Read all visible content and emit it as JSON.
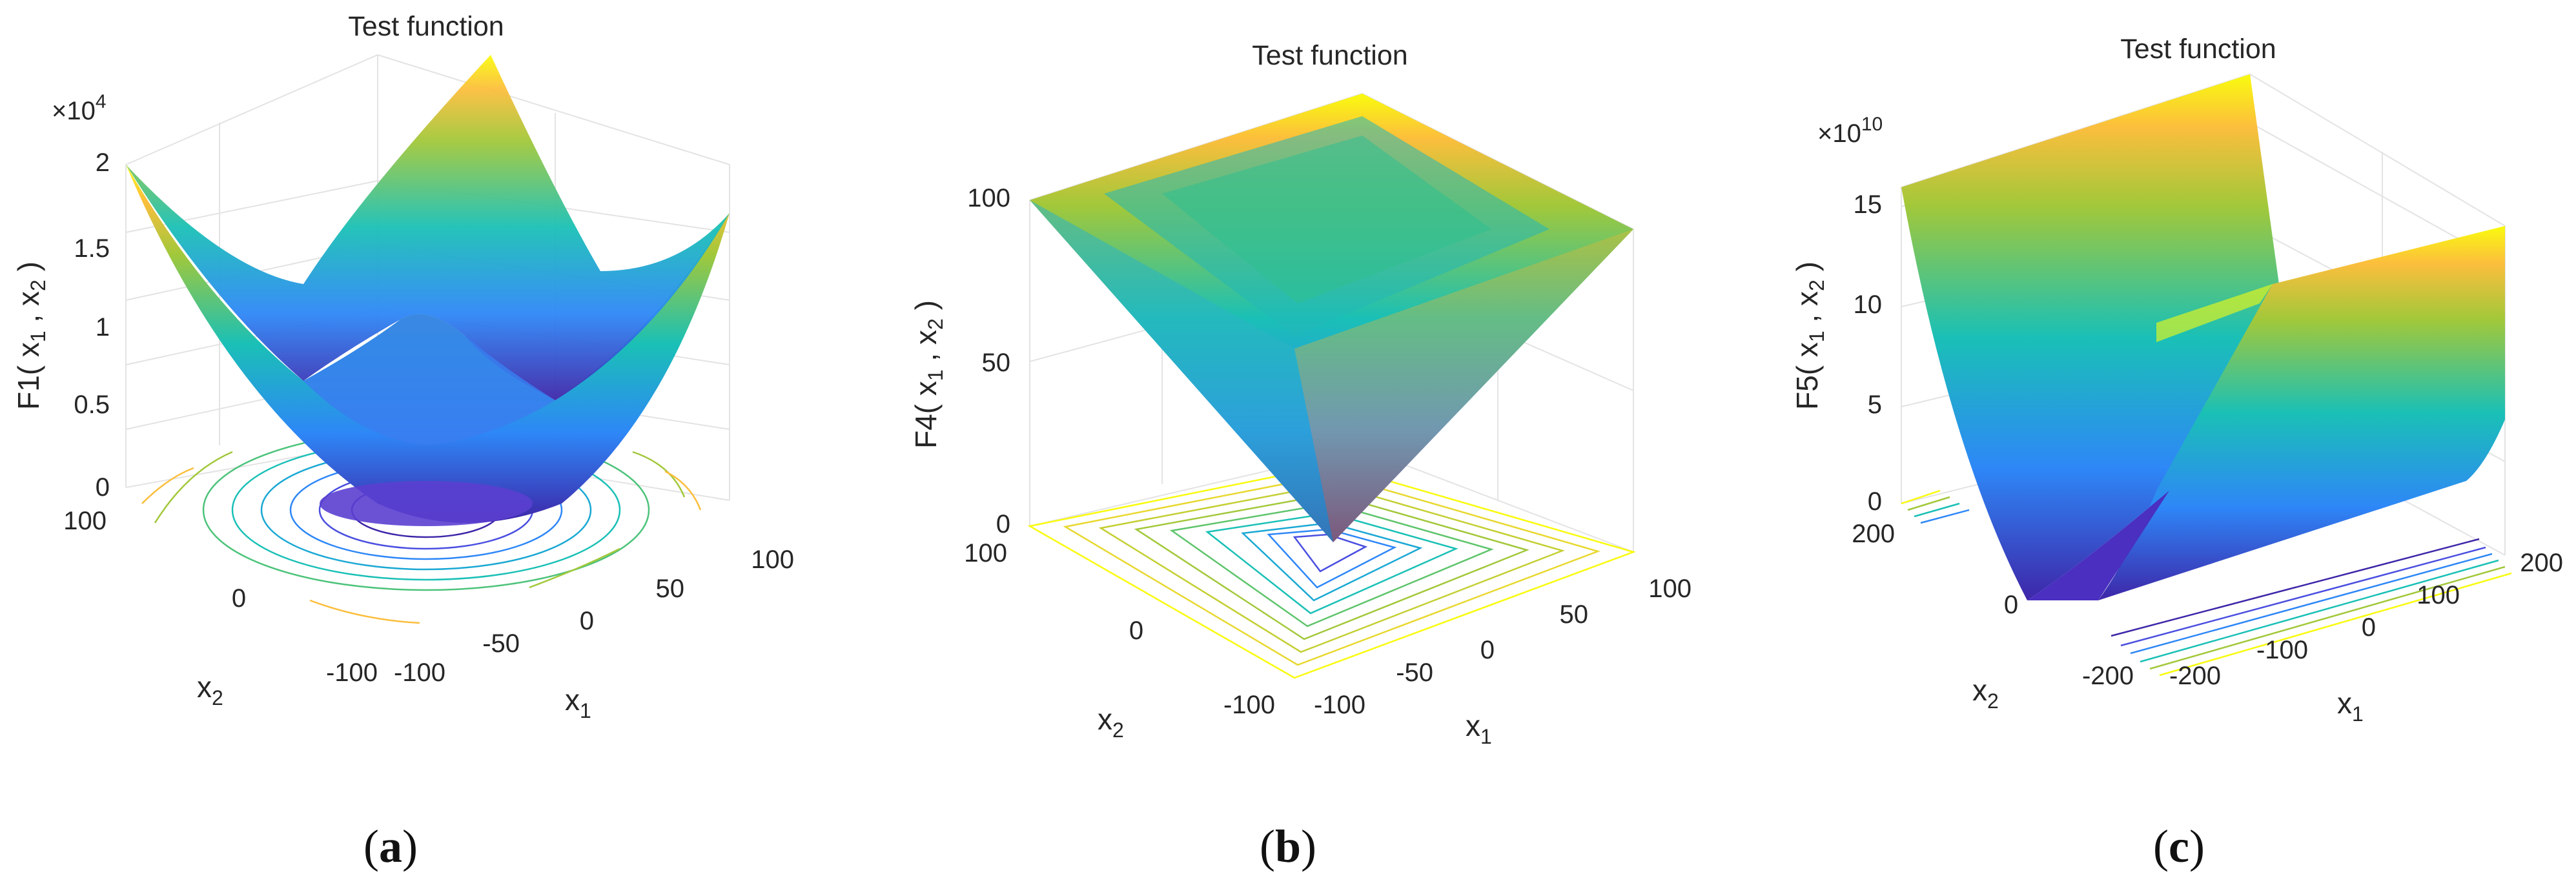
{
  "chart_data": [
    {
      "type": "surface",
      "panel": "(a)",
      "title": "Test function",
      "zlabel": "F1( x_1 , x_2 )",
      "xlabel": "x_1",
      "ylabel": "x_2",
      "x_ticks": [
        "-100",
        "-50",
        "0",
        "50",
        "100"
      ],
      "y_ticks": [
        "-100",
        "0",
        "100"
      ],
      "z_ticks": [
        "0",
        "0.5",
        "1",
        "1.5",
        "2"
      ],
      "z_exponent": "×10",
      "z_exponent_power": "4",
      "xlim": [
        -100,
        100
      ],
      "ylim": [
        -100,
        100
      ],
      "zlim": [
        0,
        20000
      ],
      "surface": "x1^2 + x2^2",
      "contours": "circular, projected on floor",
      "colormap": "parula"
    },
    {
      "type": "surface",
      "panel": "(b)",
      "title": "Test function",
      "zlabel": "F4( x_1 , x_2 )",
      "xlabel": "x_1",
      "ylabel": "x_2",
      "x_ticks": [
        "-100",
        "-50",
        "0",
        "50",
        "100"
      ],
      "y_ticks": [
        "-100",
        "0",
        "100"
      ],
      "z_ticks": [
        "0",
        "50",
        "100"
      ],
      "xlim": [
        -100,
        100
      ],
      "ylim": [
        -100,
        100
      ],
      "zlim": [
        0,
        100
      ],
      "surface": "max(|x1|, |x2|)",
      "contours": "square, projected on floor",
      "colormap": "parula"
    },
    {
      "type": "surface",
      "panel": "(c)",
      "title": "Test function",
      "zlabel": "F5( x_1 , x_2 )",
      "xlabel": "x_1",
      "ylabel": "x_2",
      "x_ticks": [
        "-200",
        "-100",
        "0",
        "100",
        "200"
      ],
      "y_ticks": [
        "-200",
        "0",
        "200"
      ],
      "z_ticks": [
        "0",
        "5",
        "10",
        "15"
      ],
      "z_exponent": "×10",
      "z_exponent_power": "10",
      "xlim": [
        -200,
        200
      ],
      "ylim": [
        -200,
        200
      ],
      "zlim": [
        0,
        160000000000
      ],
      "surface": "valley shaped along x1",
      "contours": "parallel lines, projected on floor",
      "colormap": "parula"
    }
  ],
  "captions": [
    "a",
    "b",
    "c"
  ]
}
